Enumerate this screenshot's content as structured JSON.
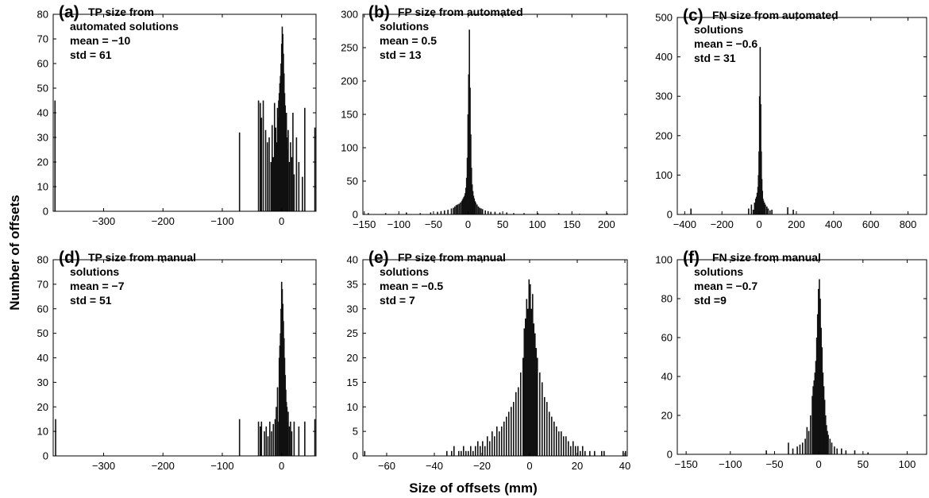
{
  "figure": {
    "xlabel": "Size of offsets (mm)",
    "ylabel": "Number of offsets"
  },
  "chart_data": [
    {
      "type": "bar",
      "panel": "(a)",
      "title_lines": [
        "TP size from",
        "automated solutions"
      ],
      "stats": [
        "mean = −10",
        "std = 61"
      ],
      "xlim": [
        -385,
        58
      ],
      "ylim": [
        0,
        80
      ],
      "xticks": [
        -300,
        -200,
        -100,
        0
      ],
      "yticks": [
        0,
        10,
        20,
        30,
        40,
        50,
        60,
        70,
        80
      ],
      "bin_width": 1,
      "bins": [
        [
          -383,
          45
        ],
        [
          -72,
          32
        ],
        [
          -40,
          45
        ],
        [
          -37,
          44
        ],
        [
          -35,
          38
        ],
        [
          -32,
          45
        ],
        [
          -28,
          33
        ],
        [
          -25,
          28
        ],
        [
          -22,
          30
        ],
        [
          -19,
          20
        ],
        [
          -17,
          35
        ],
        [
          -15,
          22
        ],
        [
          -13,
          44
        ],
        [
          -12,
          30
        ],
        [
          -11,
          34
        ],
        [
          -10,
          25
        ],
        [
          -9,
          28
        ],
        [
          -8,
          42
        ],
        [
          -7,
          38
        ],
        [
          -6,
          45
        ],
        [
          -5,
          48
        ],
        [
          -4,
          52
        ],
        [
          -3,
          55
        ],
        [
          -2,
          60
        ],
        [
          -1,
          68
        ],
        [
          0,
          75
        ],
        [
          1,
          72
        ],
        [
          2,
          64
        ],
        [
          3,
          56
        ],
        [
          4,
          48
        ],
        [
          5,
          43
        ],
        [
          6,
          36
        ],
        [
          7,
          40
        ],
        [
          8,
          30
        ],
        [
          9,
          25
        ],
        [
          10,
          33
        ],
        [
          12,
          20
        ],
        [
          14,
          28
        ],
        [
          16,
          22
        ],
        [
          18,
          40
        ],
        [
          20,
          15
        ],
        [
          24,
          30
        ],
        [
          28,
          20
        ],
        [
          34,
          14
        ],
        [
          38,
          42
        ],
        [
          55,
          34
        ]
      ]
    },
    {
      "type": "bar",
      "panel": "(b)",
      "title_lines": [
        "FP size from automated",
        "solutions"
      ],
      "stats": [
        "mean = 0.5",
        "std = 13"
      ],
      "xlim": [
        -152,
        230
      ],
      "ylim": [
        0,
        300
      ],
      "xticks": [
        -150,
        -100,
        -50,
        0,
        50,
        100,
        150,
        200
      ],
      "yticks": [
        0,
        50,
        100,
        150,
        200,
        250,
        300
      ],
      "bin_width": 1,
      "bins": [
        [
          -145,
          2
        ],
        [
          -120,
          2
        ],
        [
          -90,
          3
        ],
        [
          -70,
          2
        ],
        [
          -55,
          3
        ],
        [
          -45,
          4
        ],
        [
          -40,
          5
        ],
        [
          -35,
          6
        ],
        [
          -30,
          7
        ],
        [
          -25,
          9
        ],
        [
          -22,
          10
        ],
        [
          -20,
          12
        ],
        [
          -18,
          14
        ],
        [
          -16,
          15
        ],
        [
          -14,
          16
        ],
        [
          -12,
          18
        ],
        [
          -10,
          20
        ],
        [
          -9,
          22
        ],
        [
          -8,
          24
        ],
        [
          -7,
          26
        ],
        [
          -6,
          28
        ],
        [
          -5,
          32
        ],
        [
          -4,
          40
        ],
        [
          -3,
          55
        ],
        [
          -2,
          85
        ],
        [
          -1,
          150
        ],
        [
          0,
          210
        ],
        [
          1,
          277
        ],
        [
          2,
          190
        ],
        [
          3,
          120
        ],
        [
          4,
          70
        ],
        [
          5,
          45
        ],
        [
          6,
          35
        ],
        [
          7,
          28
        ],
        [
          8,
          24
        ],
        [
          9,
          20
        ],
        [
          10,
          18
        ],
        [
          12,
          15
        ],
        [
          14,
          12
        ],
        [
          16,
          10
        ],
        [
          18,
          9
        ],
        [
          20,
          8
        ],
        [
          24,
          6
        ],
        [
          28,
          5
        ],
        [
          32,
          4
        ],
        [
          38,
          4
        ],
        [
          45,
          3
        ],
        [
          55,
          3
        ],
        [
          65,
          2
        ],
        [
          80,
          2
        ],
        [
          100,
          2
        ],
        [
          130,
          2
        ],
        [
          160,
          1
        ],
        [
          200,
          2
        ],
        [
          225,
          1
        ]
      ]
    },
    {
      "type": "bar",
      "panel": "(c)",
      "title_lines": [
        "FN size from automated",
        "solutions"
      ],
      "stats": [
        "mean = −0.6",
        "std = 31"
      ],
      "xlim": [
        -440,
        900
      ],
      "ylim": [
        0,
        500
      ],
      "xticks": [
        -400,
        -200,
        0,
        200,
        400,
        600,
        800
      ],
      "yticks": [
        0,
        100,
        200,
        300,
        400,
        500
      ],
      "bin_width": 3,
      "bins": [
        [
          -370,
          15
        ],
        [
          -60,
          15
        ],
        [
          -45,
          25
        ],
        [
          -35,
          12
        ],
        [
          -28,
          30
        ],
        [
          -22,
          40
        ],
        [
          -18,
          45
        ],
        [
          -14,
          55
        ],
        [
          -10,
          70
        ],
        [
          -7,
          100
        ],
        [
          -4,
          160
        ],
        [
          -1,
          300
        ],
        [
          2,
          425
        ],
        [
          5,
          280
        ],
        [
          8,
          160
        ],
        [
          11,
          90
        ],
        [
          14,
          60
        ],
        [
          17,
          40
        ],
        [
          20,
          35
        ],
        [
          25,
          30
        ],
        [
          30,
          25
        ],
        [
          38,
          20
        ],
        [
          45,
          15
        ],
        [
          55,
          10
        ],
        [
          65,
          12
        ],
        [
          150,
          18
        ],
        [
          180,
          12
        ]
      ]
    },
    {
      "type": "bar",
      "panel": "(d)",
      "title_lines": [
        "TP size from manual",
        "solutions"
      ],
      "stats": [
        "mean = −7",
        "std = 51"
      ],
      "xlim": [
        -385,
        58
      ],
      "ylim": [
        0,
        80
      ],
      "xticks": [
        -300,
        -200,
        -100,
        0
      ],
      "yticks": [
        0,
        10,
        20,
        30,
        40,
        50,
        60,
        70,
        80
      ],
      "bin_width": 1,
      "bins": [
        [
          -382,
          15
        ],
        [
          -72,
          15
        ],
        [
          -40,
          14
        ],
        [
          -37,
          12
        ],
        [
          -35,
          14
        ],
        [
          -30,
          10
        ],
        [
          -27,
          12
        ],
        [
          -24,
          8
        ],
        [
          -21,
          14
        ],
        [
          -18,
          10
        ],
        [
          -15,
          13
        ],
        [
          -12,
          15
        ],
        [
          -10,
          20
        ],
        [
          -8,
          28
        ],
        [
          -6,
          14
        ],
        [
          -5,
          40
        ],
        [
          -4,
          45
        ],
        [
          -3,
          50
        ],
        [
          -2,
          60
        ],
        [
          -1,
          71
        ],
        [
          0,
          68
        ],
        [
          1,
          62
        ],
        [
          2,
          55
        ],
        [
          3,
          48
        ],
        [
          4,
          40
        ],
        [
          5,
          33
        ],
        [
          6,
          27
        ],
        [
          7,
          22
        ],
        [
          8,
          20
        ],
        [
          9,
          14
        ],
        [
          10,
          18
        ],
        [
          12,
          12
        ],
        [
          14,
          14
        ],
        [
          16,
          10
        ],
        [
          20,
          14
        ],
        [
          28,
          12
        ],
        [
          38,
          14
        ],
        [
          55,
          15
        ]
      ]
    },
    {
      "type": "bar",
      "panel": "(e)",
      "title_lines": [
        "FP size from manual",
        "solutions"
      ],
      "stats": [
        "mean = −0.5",
        "std = 7"
      ],
      "xlim": [
        -70,
        41
      ],
      "ylim": [
        0,
        40
      ],
      "xticks": [
        -60,
        -40,
        -20,
        0,
        20,
        40
      ],
      "yticks": [
        0,
        5,
        10,
        15,
        20,
        25,
        30,
        35,
        40
      ],
      "bin_width": 0.5,
      "bins": [
        [
          -69.5,
          1
        ],
        [
          -35,
          1
        ],
        [
          -33,
          1
        ],
        [
          -32,
          2
        ],
        [
          -30,
          1
        ],
        [
          -29,
          1
        ],
        [
          -28,
          2
        ],
        [
          -27,
          1
        ],
        [
          -26,
          1
        ],
        [
          -25,
          2
        ],
        [
          -24,
          1
        ],
        [
          -23,
          2
        ],
        [
          -22,
          3
        ],
        [
          -21,
          2
        ],
        [
          -20,
          3
        ],
        [
          -19,
          2
        ],
        [
          -18,
          4
        ],
        [
          -17,
          3
        ],
        [
          -16,
          5
        ],
        [
          -15,
          4
        ],
        [
          -14,
          6
        ],
        [
          -13,
          5
        ],
        [
          -12,
          6
        ],
        [
          -11,
          7
        ],
        [
          -10,
          8
        ],
        [
          -9,
          9
        ],
        [
          -8,
          10
        ],
        [
          -7,
          11
        ],
        [
          -6,
          13
        ],
        [
          -5,
          14
        ],
        [
          -4,
          17
        ],
        [
          -3,
          20
        ],
        [
          -2.5,
          26
        ],
        [
          -2,
          28
        ],
        [
          -1.5,
          32
        ],
        [
          -1,
          30
        ],
        [
          -0.5,
          36
        ],
        [
          0,
          35
        ],
        [
          0.5,
          30
        ],
        [
          1,
          33
        ],
        [
          1.5,
          27
        ],
        [
          2,
          25
        ],
        [
          2.5,
          22
        ],
        [
          3,
          20
        ],
        [
          4,
          17
        ],
        [
          5,
          15
        ],
        [
          6,
          12
        ],
        [
          7,
          11
        ],
        [
          8,
          9
        ],
        [
          9,
          8
        ],
        [
          10,
          7
        ],
        [
          11,
          6
        ],
        [
          12,
          5
        ],
        [
          13,
          5
        ],
        [
          14,
          4
        ],
        [
          15,
          4
        ],
        [
          16,
          3
        ],
        [
          17,
          2
        ],
        [
          18,
          3
        ],
        [
          19,
          2
        ],
        [
          20,
          2
        ],
        [
          21,
          1
        ],
        [
          22,
          2
        ],
        [
          23,
          1
        ],
        [
          25,
          1
        ],
        [
          27,
          1
        ],
        [
          30,
          1
        ],
        [
          31,
          1
        ],
        [
          39,
          1
        ],
        [
          40,
          1
        ]
      ]
    },
    {
      "type": "bar",
      "panel": "(f)",
      "title_lines": [
        "FN size from manual",
        "solutions"
      ],
      "stats": [
        "mean = −0.7",
        "std =9"
      ],
      "xlim": [
        -160,
        122
      ],
      "ylim": [
        0,
        100
      ],
      "xticks": [
        -150,
        -100,
        -50,
        0,
        50,
        100
      ],
      "yticks": [
        0,
        20,
        40,
        60,
        80,
        100
      ],
      "bin_width": 1,
      "bins": [
        [
          -60,
          2
        ],
        [
          -35,
          6
        ],
        [
          -30,
          3
        ],
        [
          -25,
          4
        ],
        [
          -22,
          5
        ],
        [
          -19,
          6
        ],
        [
          -16,
          8
        ],
        [
          -14,
          14
        ],
        [
          -12,
          12
        ],
        [
          -10,
          20
        ],
        [
          -8,
          30
        ],
        [
          -7,
          35
        ],
        [
          -6,
          38
        ],
        [
          -5,
          42
        ],
        [
          -4,
          48
        ],
        [
          -3,
          60
        ],
        [
          -2,
          72
        ],
        [
          -1,
          85
        ],
        [
          0,
          90
        ],
        [
          1,
          80
        ],
        [
          2,
          65
        ],
        [
          3,
          55
        ],
        [
          4,
          42
        ],
        [
          5,
          35
        ],
        [
          6,
          28
        ],
        [
          7,
          20
        ],
        [
          8,
          15
        ],
        [
          9,
          12
        ],
        [
          10,
          10
        ],
        [
          12,
          8
        ],
        [
          14,
          6
        ],
        [
          17,
          4
        ],
        [
          20,
          3
        ],
        [
          25,
          3
        ],
        [
          30,
          2
        ],
        [
          40,
          2
        ],
        [
          55,
          1
        ]
      ]
    }
  ]
}
